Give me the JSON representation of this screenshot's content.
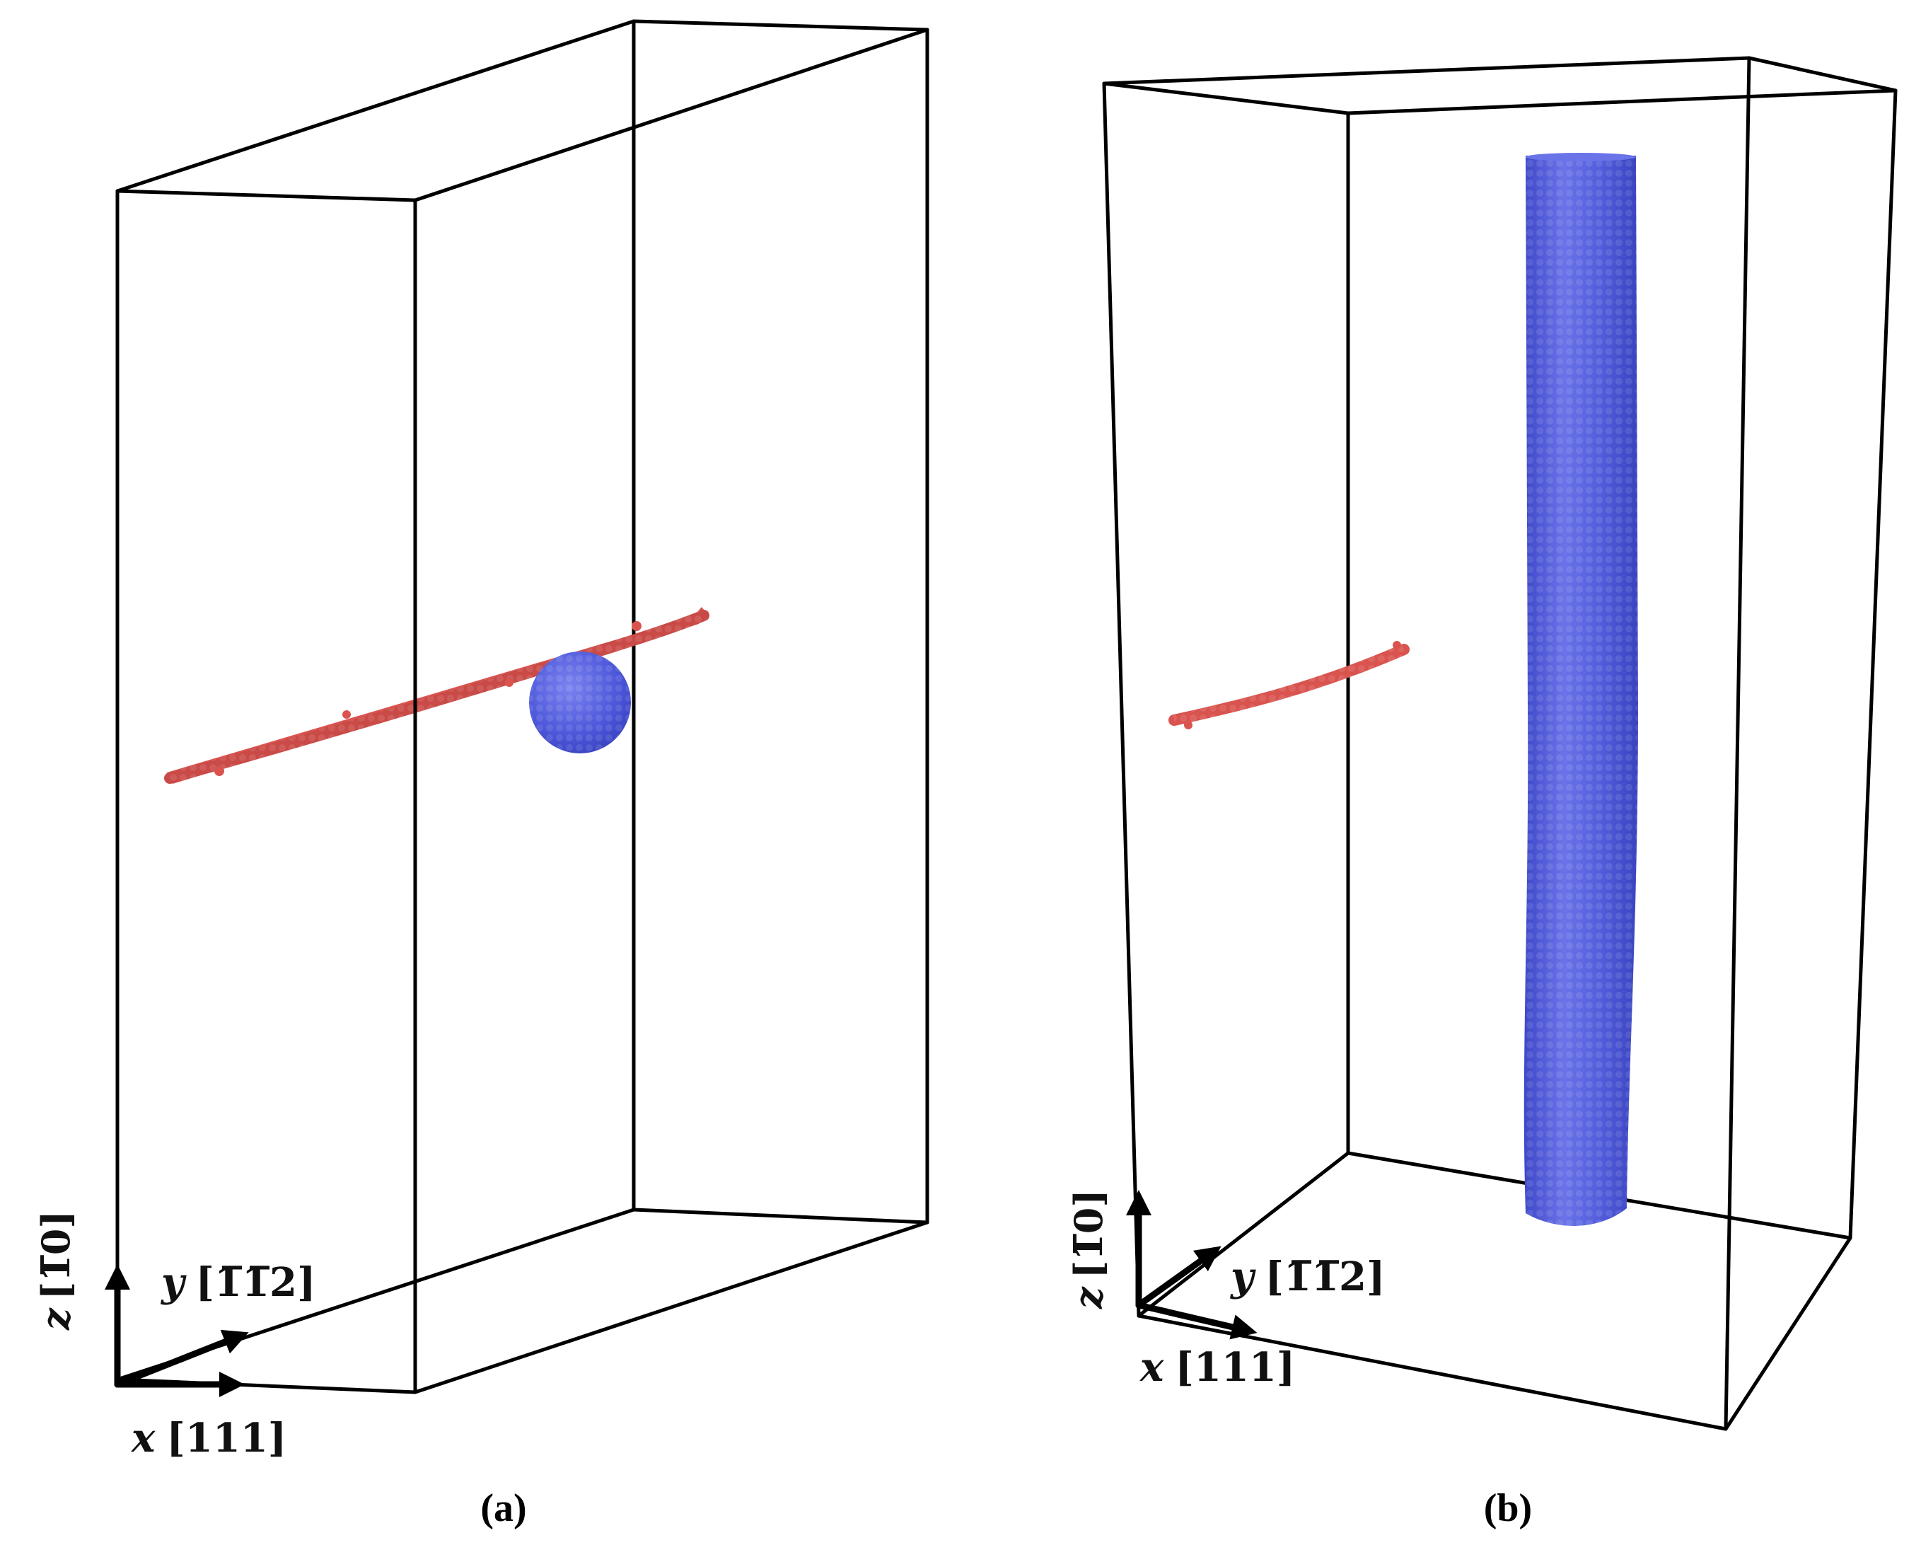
{
  "panels": [
    {
      "id": "a",
      "caption": "(a)",
      "axes": {
        "z": {
          "letter": "z",
          "index": "[1̅0]",
          "bar_over": "1"
        },
        "y": {
          "letter": "y",
          "index": "[1̅1̅2]"
        },
        "x": {
          "letter": "x",
          "index": "[111]"
        }
      }
    },
    {
      "id": "b",
      "caption": "(b)",
      "axes": {
        "z": {
          "letter": "z",
          "index": "[1̅0]"
        },
        "y": {
          "letter": "y",
          "index": "[1̅1̅2]"
        },
        "x": {
          "letter": "x",
          "index": "[111]"
        }
      }
    }
  ],
  "colors": {
    "defect_red": "#d9534f",
    "defect_blue": "#4b55d8",
    "box_edge": "#000000"
  }
}
